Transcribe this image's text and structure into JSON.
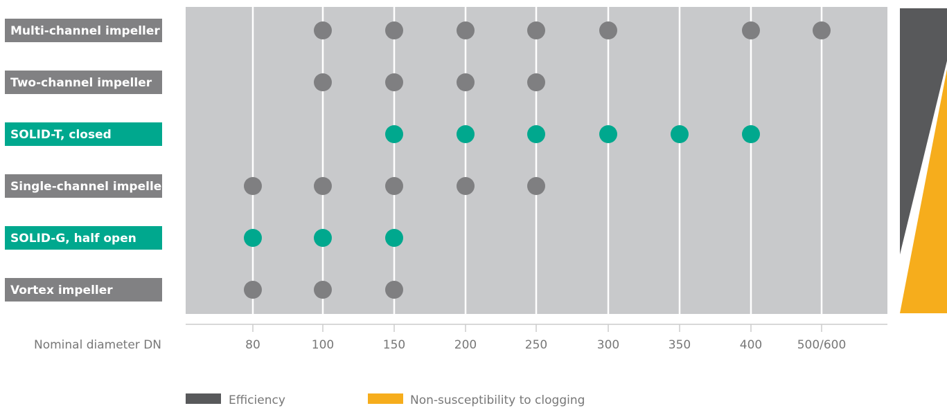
{
  "chart_data": {
    "type": "scatter",
    "xlabel": "Nominal diameter DN",
    "categories": [
      "80",
      "100",
      "150",
      "200",
      "250",
      "300",
      "350",
      "400",
      "500/600"
    ],
    "rows": [
      {
        "label": "Multi-channel impeller",
        "highlight": false,
        "values": [
          "100",
          "150",
          "200",
          "250",
          "300",
          "400",
          "500/600"
        ]
      },
      {
        "label": "Two-channel impeller",
        "highlight": false,
        "values": [
          "100",
          "150",
          "200",
          "250"
        ]
      },
      {
        "label": "SOLID-T, closed",
        "highlight": true,
        "values": [
          "150",
          "200",
          "250",
          "300",
          "350",
          "400"
        ]
      },
      {
        "label": "Single-channel impeller",
        "highlight": false,
        "values": [
          "80",
          "100",
          "150",
          "200",
          "250"
        ]
      },
      {
        "label": "SOLID-G, half open",
        "highlight": true,
        "values": [
          "80",
          "100",
          "150"
        ]
      },
      {
        "label": "Vortex impeller",
        "highlight": false,
        "values": [
          "80",
          "100",
          "150"
        ]
      }
    ],
    "legend": [
      {
        "label": "Efficiency",
        "color": "#58595b"
      },
      {
        "label": "Non-susceptibility to clogging",
        "color": "#f6ad1c"
      }
    ],
    "legend_position": "bottom",
    "grid": true
  },
  "colors": {
    "plot_background": "#c8c9cb",
    "gray_marker": "#7f7f81",
    "teal_marker": "#00a88e",
    "gray_label": "#818183",
    "teal_label": "#00a88e",
    "efficiency_wedge": "#58595b",
    "clogging_wedge": "#f6ad1c"
  }
}
